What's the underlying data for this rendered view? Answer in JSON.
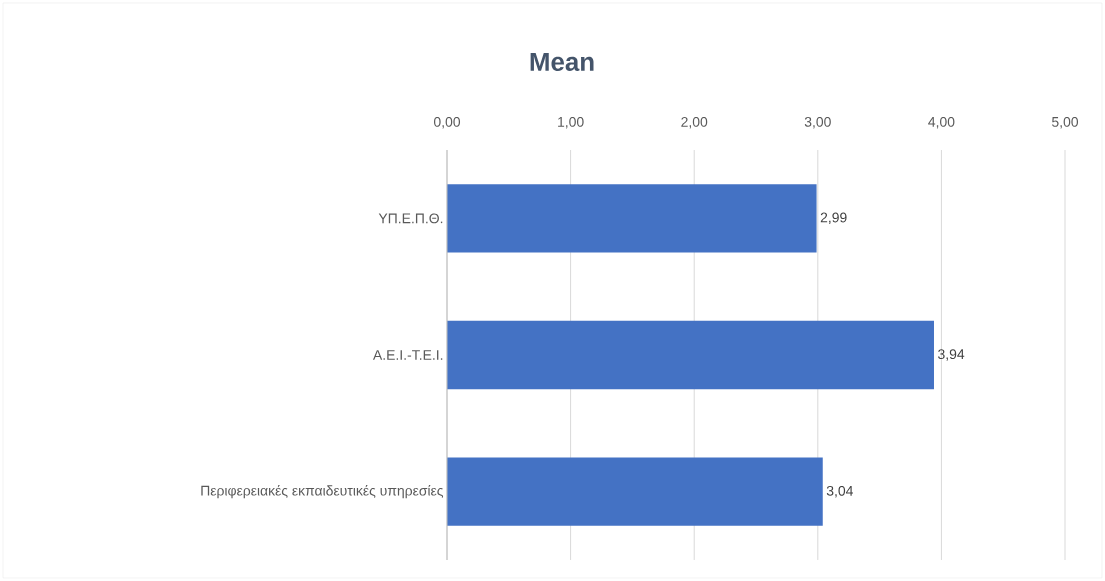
{
  "chart_data": {
    "type": "bar",
    "orientation": "horizontal",
    "title": "Mean",
    "categories": [
      "ΥΠ.Ε.Π.Θ.",
      "Α.Ε.Ι.-Τ.Ε.Ι.",
      "Περιφερειακές εκπαιδευτικές υπηρεσίες"
    ],
    "values": [
      2.99,
      3.94,
      3.04
    ],
    "value_labels": [
      "2,99",
      "3,94",
      "3,04"
    ],
    "color": "#4472c4",
    "xlim": [
      0,
      5
    ],
    "xticks": [
      {
        "value": 0,
        "label": "0,00"
      },
      {
        "value": 1,
        "label": "1,00"
      },
      {
        "value": 2,
        "label": "2,00"
      },
      {
        "value": 3,
        "label": "3,00"
      },
      {
        "value": 4,
        "label": "4,00"
      },
      {
        "value": 5,
        "label": "5,00"
      }
    ],
    "grid": "x"
  }
}
